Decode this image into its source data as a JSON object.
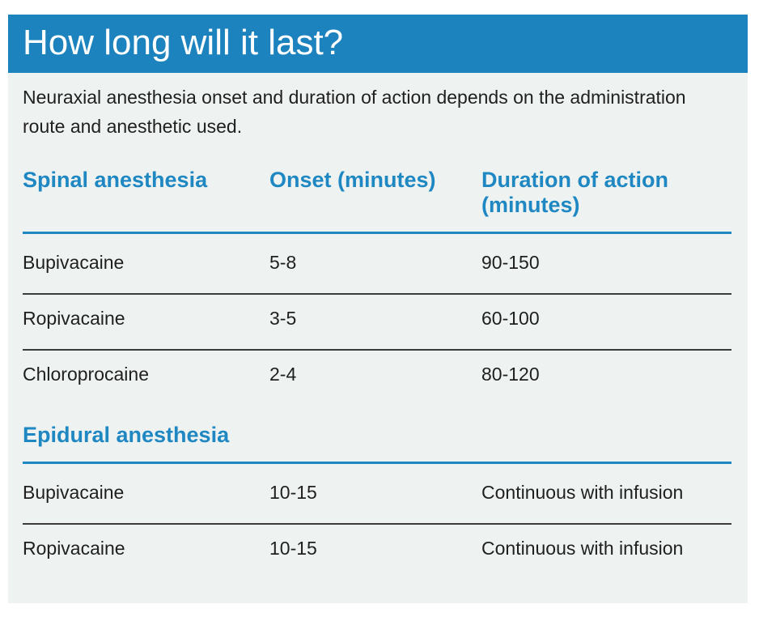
{
  "title": "How long will it last?",
  "intro": "Neuraxial anesthesia onset and duration of action depends on the administration route and anesthetic used.",
  "columns": {
    "spinal": "Spinal anesthesia",
    "onset": "Onset (minutes)",
    "duration": "Duration of action (minutes)"
  },
  "spinal_rows": [
    {
      "drug": "Bupivacaine",
      "onset": "5-8",
      "duration": "90-150"
    },
    {
      "drug": "Ropivacaine",
      "onset": "3-5",
      "duration": "60-100"
    },
    {
      "drug": "Chloroprocaine",
      "onset": "2-4",
      "duration": "80-120"
    }
  ],
  "epidural_heading": "Epidural anesthesia",
  "epidural_rows": [
    {
      "drug": "Bupivacaine",
      "onset": "10-15",
      "duration": "Continuous with infusion"
    },
    {
      "drug": "Ropivacaine",
      "onset": "10-15",
      "duration": "Continuous with infusion"
    }
  ],
  "colors": {
    "banner": "#1d83be",
    "accent": "#1f87c2",
    "background": "#eef3f2"
  }
}
